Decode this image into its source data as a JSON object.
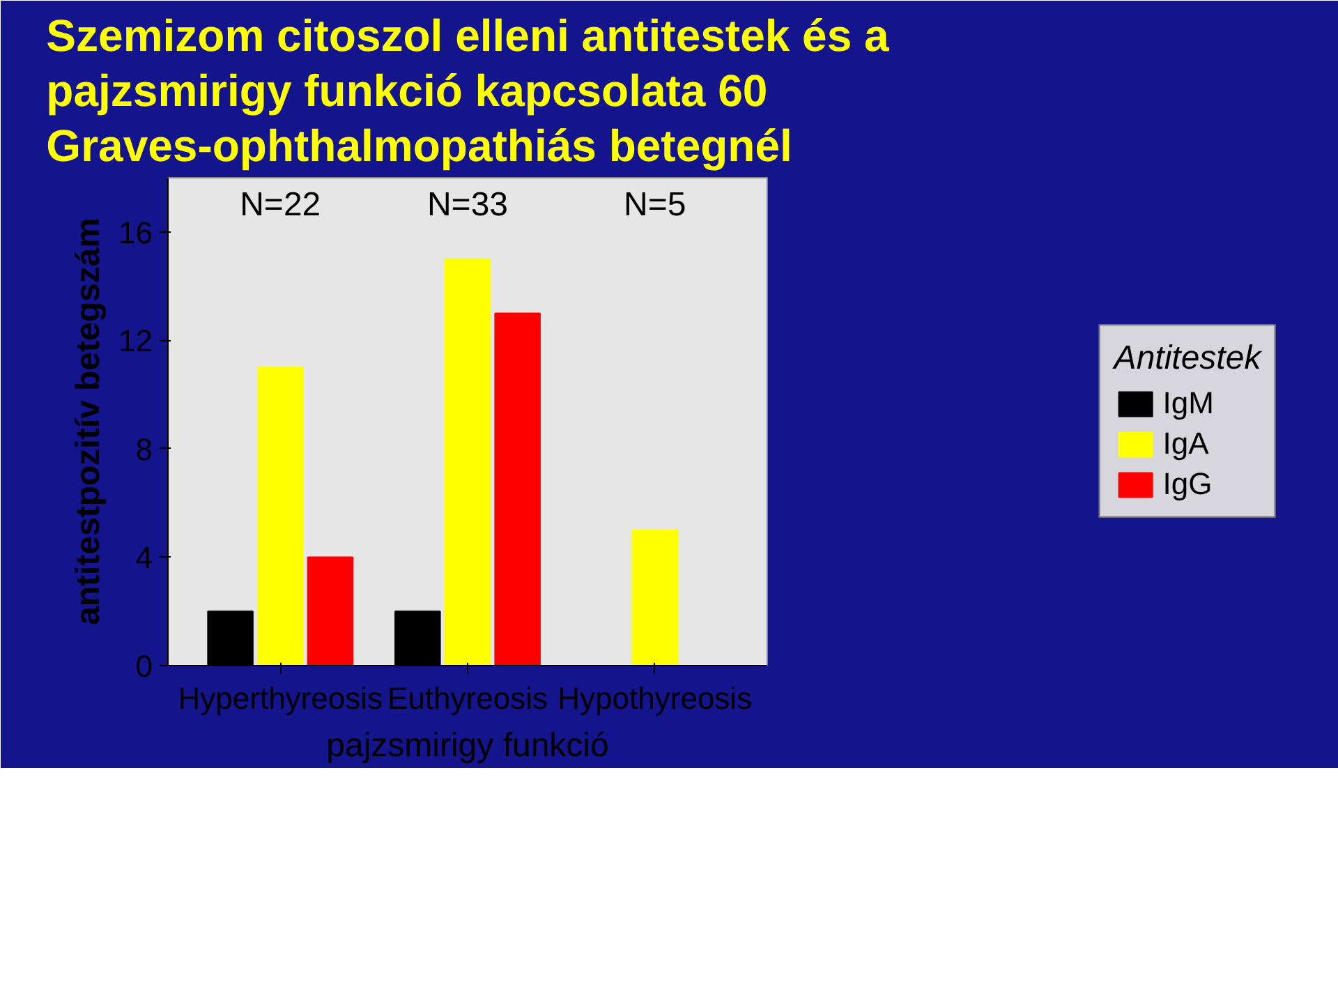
{
  "chart_data": {
    "type": "bar",
    "title": "Szemizom citoszol elleni antitestek és a\npajzsmirigy funkció kapcsolata 60\nGraves-ophthalmopathiás betegnél",
    "xlabel": "pajzsmirigy funkció",
    "ylabel": "antitestpozitív betegszám",
    "legend_title": "Antitestek",
    "categories": [
      "Hyperthyreosis",
      "Euthyreosis",
      "Hypothyreosis"
    ],
    "series": [
      {
        "name": "IgM",
        "color": "#000000",
        "values": [
          2,
          2,
          0
        ]
      },
      {
        "name": "IgA",
        "color": "#ffff00",
        "values": [
          11,
          15,
          5
        ]
      },
      {
        "name": "IgG",
        "color": "#ff0000",
        "values": [
          4,
          13,
          0
        ]
      }
    ],
    "ylim": [
      0,
      18
    ],
    "yticks": [
      0,
      4,
      8,
      12,
      16
    ],
    "grid": false,
    "legend": "right",
    "annotations": [
      "N=22",
      "N=33",
      "N=5"
    ]
  }
}
